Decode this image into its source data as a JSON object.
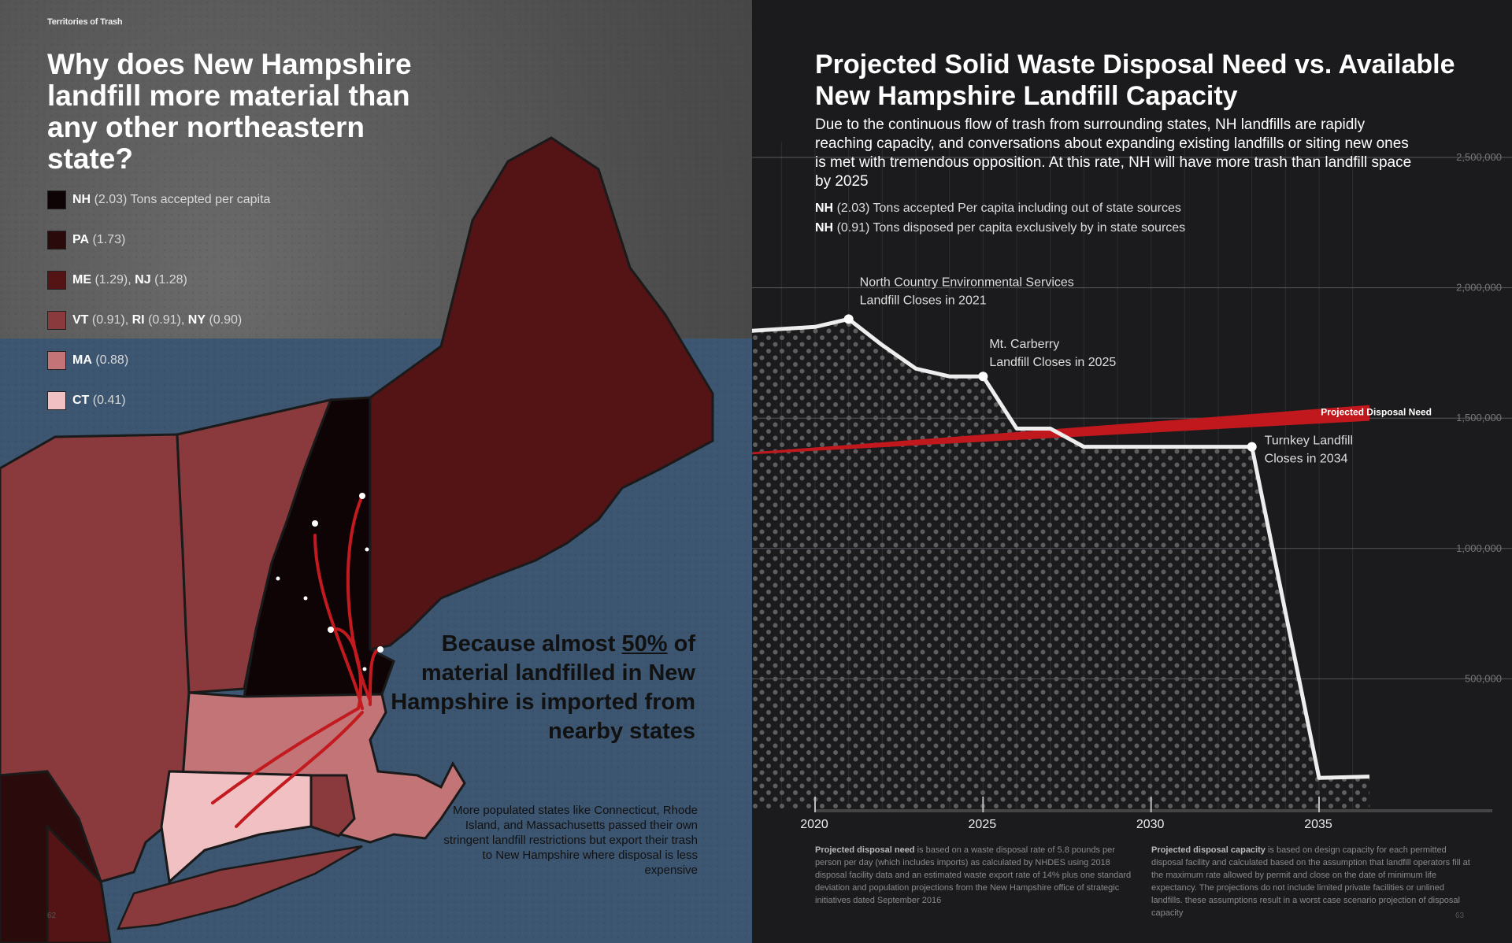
{
  "left_page": {
    "running_head": "Territories of Trash",
    "title": "Why does New Hampshire landfill more material than any other northeastern state?",
    "legend": [
      {
        "state": "NH",
        "value": "(2.03)",
        "suffix": " Tons accepted per capita",
        "color": "#0e0405"
      },
      {
        "state": "PA",
        "value": "(1.73)",
        "suffix": "",
        "color": "#2a0a0b"
      },
      {
        "state": "ME",
        "value": "(1.29),",
        "state2": "NJ",
        "value2": "(1.28)",
        "color": "#541315"
      },
      {
        "state": "VT",
        "value": "(0.91),",
        "state2": "RI",
        "value2": "(0.91),",
        "state3": "NY",
        "value3": "(0.90)",
        "color": "#8a3a3c"
      },
      {
        "state": "MA",
        "value": "(0.88)",
        "color": "#c27476"
      },
      {
        "state": "CT",
        "value": "(0.41)",
        "color": "#f0c0c2"
      }
    ],
    "callout_pre": "Because almost ",
    "callout_highlight": "50%",
    "callout_post": " of material landfilled in New Hampshire is imported from nearby states",
    "callout_sub": "More populated states like Connecticut, Rhode Island, and Massachusetts passed their own stringent landfill restrictions but export their trash to New Hampshire where disposal is less expensive",
    "page_number": "62"
  },
  "right_page": {
    "title": "Projected Solid Waste Disposal Need vs. Available New Hampshire Landfill Capacity",
    "description": "Due to the continuous flow of trash from surrounding states, NH landfills are rapidly reaching capacity, and conversations about expanding existing landfills or siting new ones is met with tremendous opposition. At this rate, NH will have more trash than landfill space by 2025",
    "stats": [
      {
        "label": "NH",
        "value": "(2.03)",
        "text": " Tons accepted Per capita including out of state sources"
      },
      {
        "label": "NH",
        "value": "(0.91)",
        "text": " Tons disposed per capita exclusively by in state sources"
      }
    ],
    "notes": [
      {
        "bold": "Projected disposal need",
        "text": " is based on a waste disposal rate of 5.8 pounds per person per day (which includes imports) as calculated by NHDES using 2018 disposal facility data and an estimated waste export rate of 14% plus one standard deviation and population projections from the New Hampshire office of strategic initiatives dated September 2016"
      },
      {
        "bold": "Projected disposal capacity",
        "text": " is based on design capacity for each permitted disposal facility and calculated based on the assumption that landfill operators fill at the maximum rate allowed by permit and close on the date of minimum life expectancy. The projections do not include limited private facilities or unlined landfills. these assumptions result in a worst case scenario projection of disposal capacity"
      }
    ],
    "page_number": "63"
  },
  "chart_data": {
    "type": "line",
    "title": "Projected Solid Waste Disposal Need vs. Available New Hampshire Landfill Capacity",
    "xlabel": "",
    "ylabel": "",
    "xlim": [
      2019.5,
      2036.5
    ],
    "ylim": [
      0,
      2500000
    ],
    "x_ticks": [
      2020,
      2025,
      2030,
      2035
    ],
    "x_tick_labels": [
      "2020",
      "2025",
      "2030",
      "2035"
    ],
    "y_ticks": [
      500000,
      1000000,
      1500000,
      2000000,
      2500000
    ],
    "y_tick_labels": [
      "500,000",
      "1,000,000",
      "1,500,000",
      "2,000,000",
      "2,500,000"
    ],
    "grid": "vertical yearly lines and horizontal lines at y ticks",
    "series": [
      {
        "name": "",
        "color": "#eeeeee",
        "points": [
          [
            2017.5,
            1830000
          ],
          [
            2020,
            1850000
          ],
          [
            2021,
            1880000
          ],
          [
            2022,
            1780000
          ],
          [
            2023,
            1690000
          ],
          [
            2024,
            1660000
          ],
          [
            2025,
            1660000
          ],
          [
            2026,
            1460000
          ],
          [
            2027,
            1460000
          ],
          [
            2028,
            1390000
          ],
          [
            2033,
            1390000
          ],
          [
            2035,
            120000
          ],
          [
            2036.5,
            125000
          ]
        ]
      },
      {
        "name": "Projected Disposal Need",
        "color": "#c0181c",
        "points": [
          [
            2017.5,
            1360000
          ],
          [
            2036.5,
            1520000
          ]
        ]
      }
    ],
    "annotations": [
      {
        "x": 2021,
        "y": 1880000,
        "lines": [
          "North Country Environmental Services",
          "Landfill Closes in 2021"
        ]
      },
      {
        "x": 2025,
        "y": 1660000,
        "lines": [
          "Mt. Carberry",
          "Landfill Closes in 2025"
        ]
      },
      {
        "x": 2033,
        "y": 1390000,
        "lines": [
          "Turnkey Landfill",
          "Closes in 2034"
        ]
      }
    ]
  },
  "colors": {
    "ocean": "#3c5570",
    "ground": "#4e4e4e",
    "need_red": "#c0181c"
  }
}
